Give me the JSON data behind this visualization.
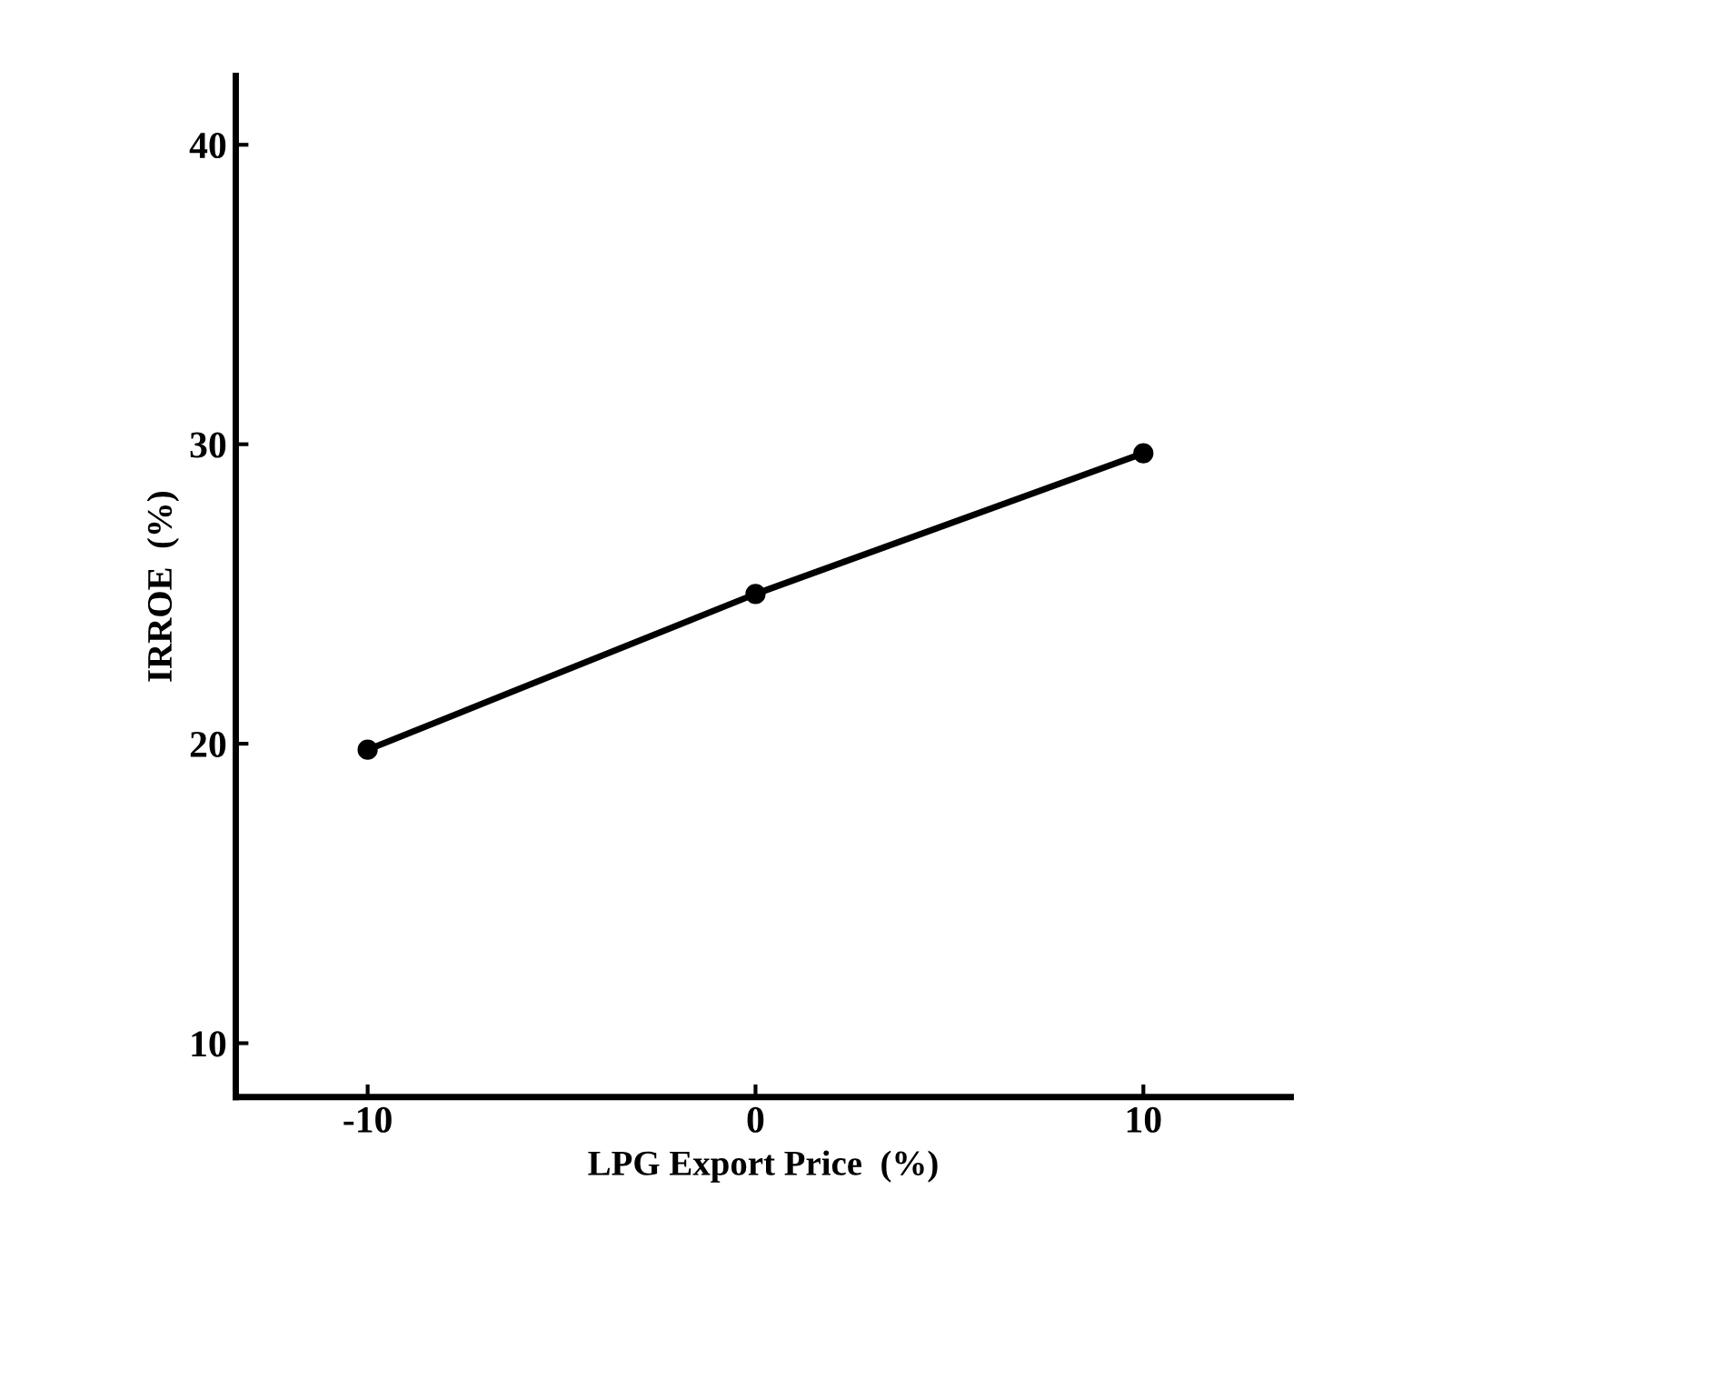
{
  "chart_data": {
    "type": "line",
    "xlabel": "LPG Export Price  (%)",
    "ylabel": "IRROE  (%)",
    "x": [
      -10,
      0,
      10
    ],
    "series": [
      {
        "color": "#000000",
        "values": [
          19.8,
          25.0,
          29.7
        ]
      }
    ],
    "xlim": [
      -13.4,
      13.8
    ],
    "xticks": [
      -10,
      0,
      10
    ],
    "ylim": [
      8.2,
      42.3
    ],
    "yticks": [
      10,
      20,
      30,
      40
    ],
    "marker": "circle",
    "line_style": "solid",
    "grid": false,
    "legend": false
  }
}
